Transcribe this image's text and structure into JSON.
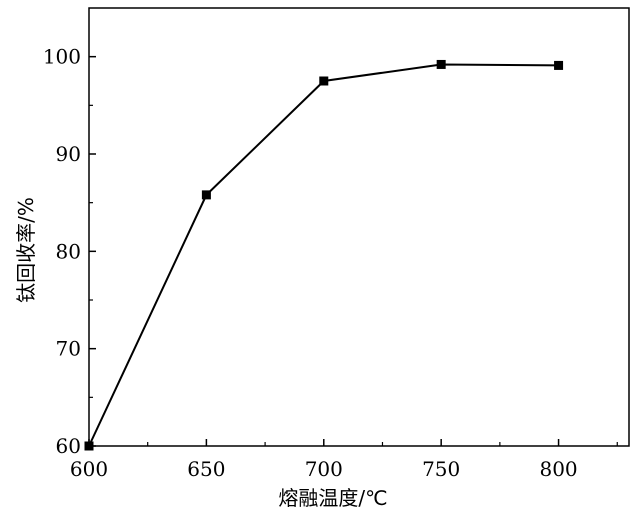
{
  "chart_data": {
    "type": "line",
    "xlabel": "熔融温度/℃",
    "ylabel": "钛回收率/%",
    "x": [
      600,
      650,
      700,
      750,
      800
    ],
    "series": [
      {
        "values": [
          60.0,
          85.8,
          97.5,
          99.2,
          99.1
        ]
      }
    ],
    "xlim": [
      600,
      830
    ],
    "ylim": [
      60,
      105
    ],
    "xticks": [
      600,
      650,
      700,
      750,
      800
    ],
    "yticks": [
      60,
      70,
      80,
      90,
      100
    ],
    "grid": false,
    "legend": "none",
    "colors": {
      "line": "#000000",
      "marker": "#000000"
    }
  }
}
